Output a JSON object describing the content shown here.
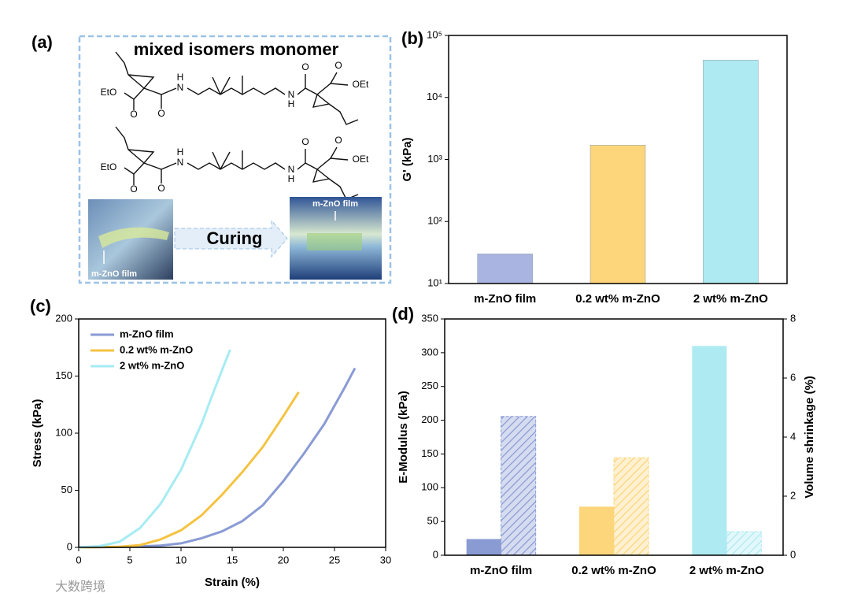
{
  "panel_a": {
    "label": "(a)",
    "title": "mixed isomers monomer",
    "step": "Curing",
    "film_labels": [
      "m-ZnO film",
      "m-ZnO film"
    ],
    "molecules": [
      [
        "EtO",
        "O",
        "O",
        "H",
        "N",
        "N",
        "H",
        "O",
        "O",
        "OEt"
      ],
      [
        "EtO",
        "O",
        "O",
        "H",
        "N",
        "N",
        "H",
        "O",
        "O",
        "OEt"
      ]
    ]
  },
  "watermark": "大数跨境",
  "chart_data": [
    {
      "type": "bar",
      "panel_label": "(b)",
      "ylabel": "G' (kPa)",
      "log_y": true,
      "categories": [
        "m-ZnO film",
        "0.2 wt% m-ZnO",
        "2 wt% m-ZnO"
      ],
      "values": [
        30,
        1700,
        40000
      ],
      "colors": [
        "#aab4e0",
        "#fdd57a",
        "#aeeaf2"
      ],
      "ylim": [
        10,
        100000
      ],
      "yticks": [
        {
          "value": 10,
          "label": "10¹"
        },
        {
          "value": 100,
          "label": "10²"
        },
        {
          "value": 1000,
          "label": "10³"
        },
        {
          "value": 10000,
          "label": "10⁴"
        },
        {
          "value": 100000,
          "label": "10⁵"
        }
      ]
    },
    {
      "type": "line",
      "panel_label": "(c)",
      "xlabel": "Strain (%)",
      "ylabel": "Stress (kPa)",
      "legend": "top-left",
      "xlim": [
        0,
        30
      ],
      "xticks": [
        0,
        5,
        10,
        15,
        20,
        25,
        30
      ],
      "ylim": [
        0,
        200
      ],
      "yticks": [
        0,
        50,
        100,
        150,
        200
      ],
      "series": [
        {
          "name": "m-ZnO film",
          "color": "#8a9bd4",
          "x": [
            0,
            5,
            8,
            10,
            12,
            14,
            16,
            18,
            20,
            22,
            24,
            26,
            27
          ],
          "values": [
            0,
            0.5,
            1.5,
            3.5,
            8,
            14,
            23,
            37,
            58,
            82,
            108,
            140,
            157
          ]
        },
        {
          "name": "0.2 wt% m-ZnO",
          "color": "#f5c342",
          "x": [
            0,
            4,
            6,
            8,
            10,
            12,
            14,
            16,
            18,
            20,
            21.5
          ],
          "values": [
            0,
            0.5,
            2,
            7,
            15,
            28,
            46,
            66,
            88,
            115,
            136
          ]
        },
        {
          "name": "2 wt% m-ZnO",
          "color": "#a6ecf3",
          "x": [
            0,
            2,
            4,
            6,
            8,
            10,
            12,
            13,
            14,
            14.8
          ],
          "values": [
            0,
            1,
            5,
            17,
            38,
            68,
            108,
            132,
            155,
            173
          ]
        }
      ]
    },
    {
      "type": "bar",
      "panel_label": "(d)",
      "ylabel": "E-Modulus (kPa)",
      "y2label": "Volume shrinkage (%)",
      "categories": [
        "m-ZnO film",
        "0.2 wt% m-ZnO",
        "2 wt% m-ZnO"
      ],
      "ylim": [
        0,
        350
      ],
      "yticks": [
        0,
        50,
        100,
        150,
        200,
        250,
        300,
        350
      ],
      "y2lim": [
        0,
        8
      ],
      "y2ticks": [
        0,
        2,
        4,
        6,
        8
      ],
      "series": [
        {
          "colors": [
            "#8a9bd4",
            "#fdd57a",
            "#aeeaf2"
          ],
          "values": [
            24,
            72,
            310
          ]
        },
        {
          "colors": [
            "#8a9bd4",
            "#fdd57a",
            "#aeeaf2"
          ],
          "values": [
            4.7,
            3.3,
            0.8
          ],
          "axis": "y2",
          "hatch": true
        }
      ]
    }
  ]
}
